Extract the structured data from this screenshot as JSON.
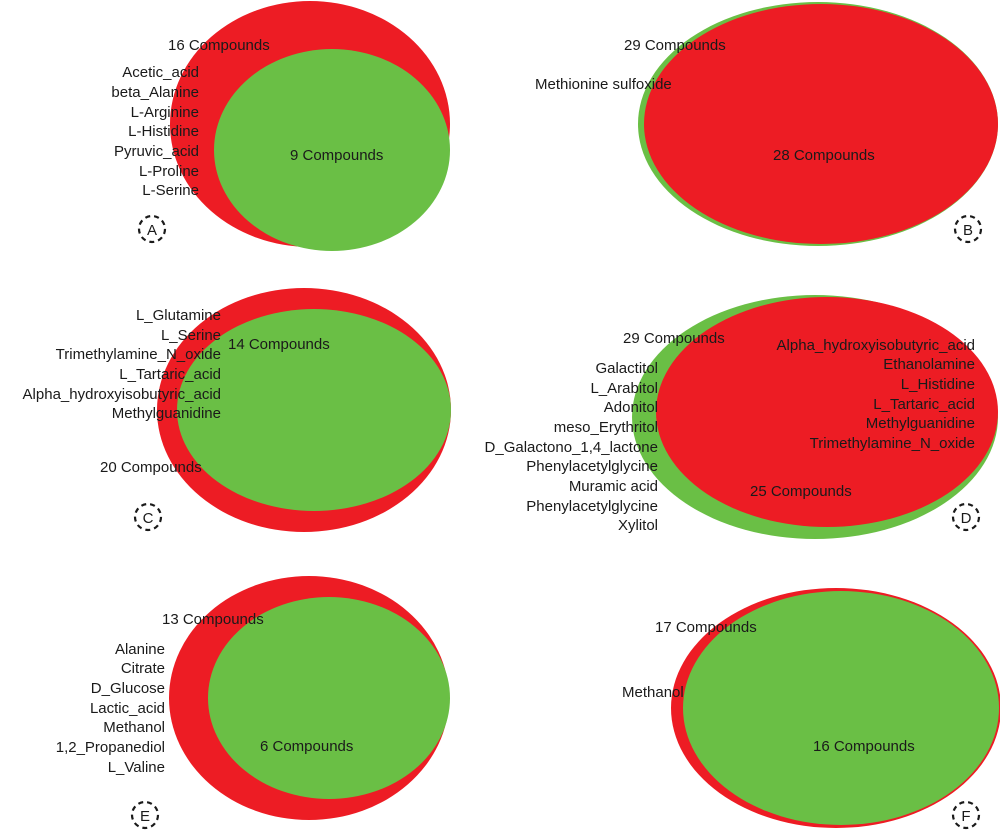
{
  "colors": {
    "red": "#ed1c24",
    "green": "#6abf45",
    "text": "#1a1a1a"
  },
  "panels": {
    "A": {
      "letter": "A",
      "outer_label": "16 Compounds",
      "inner_label": "9 Compounds",
      "compounds": [
        "Acetic_acid",
        "beta_Alanine",
        "L-Arginine",
        "L-Histidine",
        "Pyruvic_acid",
        "L-Proline",
        "L-Serine"
      ]
    },
    "B": {
      "letter": "B",
      "outer_label": "29 Compounds",
      "inner_label": "28 Compounds",
      "compounds": [
        "Methionine sulfoxide"
      ]
    },
    "C": {
      "letter": "C",
      "outer_label": "20 Compounds",
      "inner_label": "14 Compounds",
      "compounds": [
        "L_Glutamine",
        "L_Serine",
        "Trimethylamine_N_oxide",
        "L_Tartaric_acid",
        "Alpha_hydroxyisobutyric_acid",
        "Methylguanidine"
      ]
    },
    "D": {
      "letter": "D",
      "outer_label": "29 Compounds",
      "inner_label": "25 Compounds",
      "compounds_left": [
        "Galactitol",
        "L_Arabitol",
        "Adonitol",
        "meso_Erythritol",
        "D_Galactono_1,4_lactone",
        "Phenylacetylglycine",
        "Muramic acid",
        "Phenylacetylglycine",
        "Xylitol"
      ],
      "compounds_right": [
        "Alpha_hydroxyisobutyric_acid",
        "Ethanolamine",
        "L_Histidine",
        "L_Tartaric_acid",
        "Methylguanidine",
        "Trimethylamine_N_oxide"
      ]
    },
    "E": {
      "letter": "E",
      "outer_label": "13 Compounds",
      "inner_label": "6 Compounds",
      "compounds": [
        "Alanine",
        "Citrate",
        "D_Glucose",
        "Lactic_acid",
        "Methanol",
        "1,2_Propanediol",
        "L_Valine"
      ]
    },
    "F": {
      "letter": "F",
      "outer_label": "17 Compounds",
      "inner_label": "16 Compounds",
      "compounds": [
        "Methanol"
      ]
    }
  }
}
